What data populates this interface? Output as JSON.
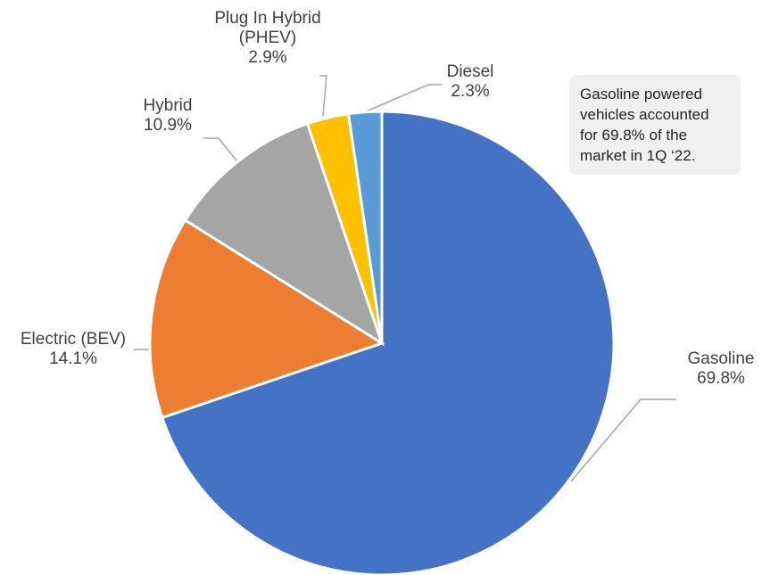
{
  "chart_data": {
    "type": "pie",
    "categories": [
      "Gasoline",
      "Electric (BEV)",
      "Hybrid",
      "Plug In Hybrid (PHEV)",
      "Diesel"
    ],
    "values": [
      69.8,
      14.1,
      10.9,
      2.9,
      2.3
    ],
    "value_labels": [
      "69.8%",
      "14.1%",
      "10.9%",
      "2.9%",
      "2.3%"
    ],
    "colors": [
      "#4472c4",
      "#ed7d31",
      "#a5a5a5",
      "#ffc000",
      "#5b9bd5"
    ],
    "annotation": "Gasoline powered vehicles accounted for 69.8% of the market in 1Q ‘22."
  }
}
